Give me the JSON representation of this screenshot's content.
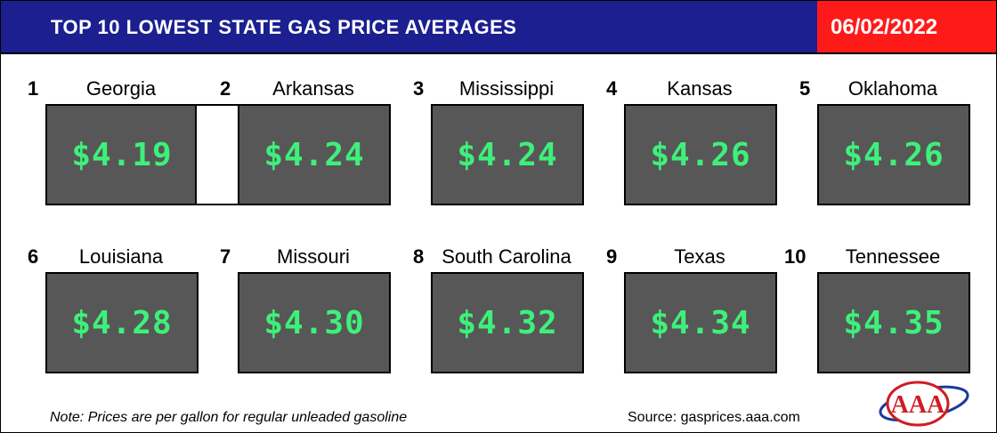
{
  "header": {
    "title": "TOP 10 LOWEST STATE GAS PRICE AVERAGES",
    "date": "06/02/2022",
    "colors": {
      "bar": "#1b1f8f",
      "date_box": "#ff1a1a"
    }
  },
  "items": [
    {
      "rank": "1",
      "state": "Georgia",
      "price": "$4.19"
    },
    {
      "rank": "2",
      "state": "Arkansas",
      "price": "$4.24"
    },
    {
      "rank": "3",
      "state": "Mississippi",
      "price": "$4.24"
    },
    {
      "rank": "4",
      "state": "Kansas",
      "price": "$4.26"
    },
    {
      "rank": "5",
      "state": "Oklahoma",
      "price": "$4.26"
    },
    {
      "rank": "6",
      "state": "Louisiana",
      "price": "$4.28"
    },
    {
      "rank": "7",
      "state": "Missouri",
      "price": "$4.30"
    },
    {
      "rank": "8",
      "state": "South Carolina",
      "price": "$4.32"
    },
    {
      "rank": "9",
      "state": "Texas",
      "price": "$4.34"
    },
    {
      "rank": "10",
      "state": "Tennessee",
      "price": "$4.35"
    }
  ],
  "footer": {
    "note": "Note: Prices are per gallon for regular unleaded gasoline",
    "source": "Source: gasprices.aaa.com",
    "logo_text": "AAA"
  },
  "colors": {
    "price_text": "#3ef07a",
    "price_box": "#575757"
  }
}
